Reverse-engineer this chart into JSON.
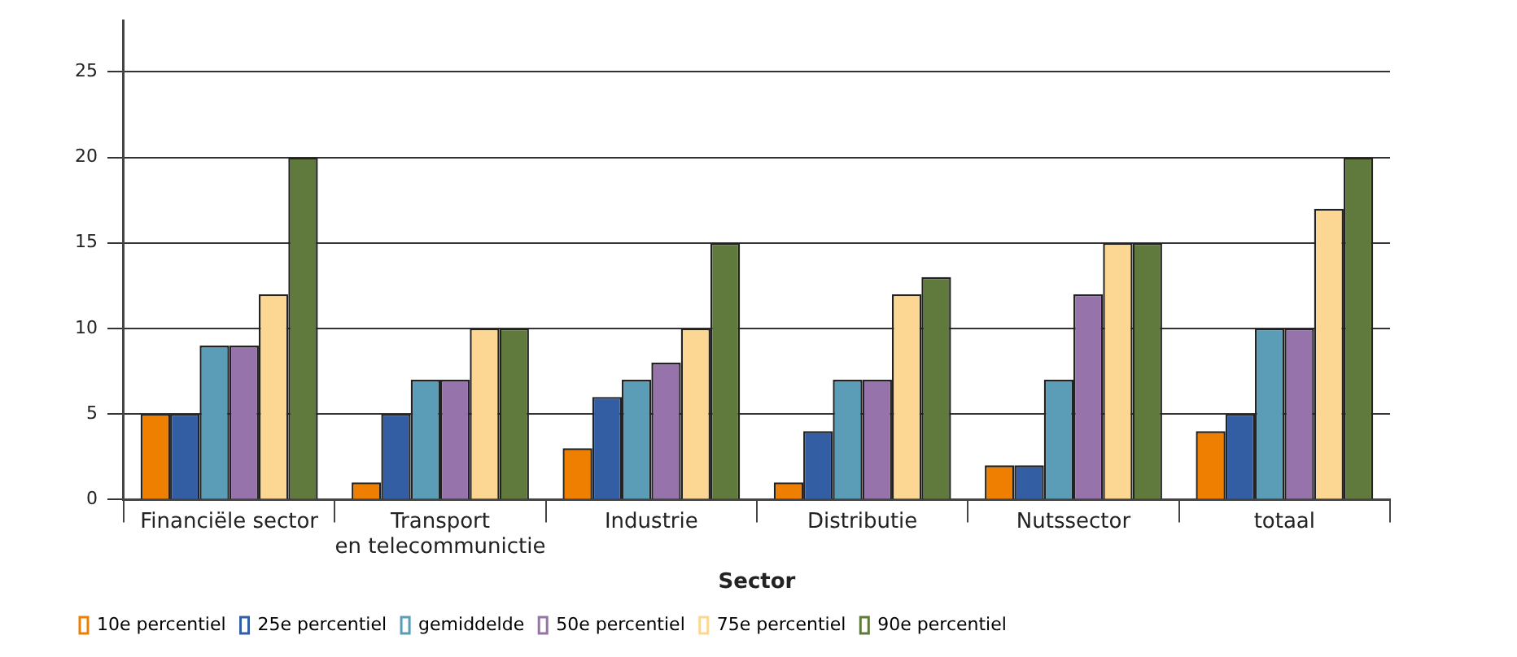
{
  "chart_data": {
    "type": "bar",
    "xlabel": "Sector",
    "categories": [
      "Financiële sector",
      "Transport en telecommunictie",
      "Industrie",
      "Distributie",
      "Nutssector",
      "totaal"
    ],
    "series": [
      {
        "name": "10e percentiel",
        "color": "#ee7f00",
        "values": [
          5,
          1,
          3,
          1,
          2,
          4
        ]
      },
      {
        "name": "25e percentiel",
        "color": "#345ea4",
        "values": [
          5,
          5,
          6,
          4,
          2,
          5
        ]
      },
      {
        "name": "gemiddelde",
        "color": "#5b9db7",
        "values": [
          9,
          7,
          7,
          7,
          7,
          10
        ]
      },
      {
        "name": "50e percentiel",
        "color": "#9673ab",
        "values": [
          9,
          7,
          8,
          7,
          12,
          10
        ]
      },
      {
        "name": "75e percentiel",
        "color": "#fcd793",
        "values": [
          12,
          10,
          10,
          12,
          15,
          17
        ]
      },
      {
        "name": "90e percentiel",
        "color": "#5f7a3c",
        "values": [
          20,
          10,
          15,
          13,
          15,
          20
        ]
      }
    ],
    "ylim": [
      0,
      28
    ],
    "yticks": [
      0,
      5,
      10,
      15,
      20,
      25
    ],
    "grid": "y",
    "legend": "bottom left"
  }
}
